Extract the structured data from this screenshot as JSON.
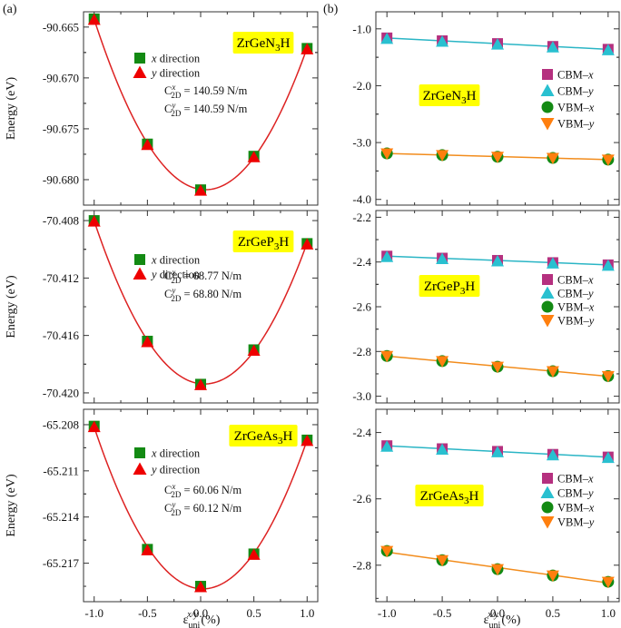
{
  "panel_labels": [
    "(a)",
    "(b)"
  ],
  "left_ylabel": "Energy (eV)",
  "xlabel": {
    "base": "ε",
    "sup": "x/y",
    "sub": "uni",
    "unit": "(%)"
  },
  "legend_left": [
    {
      "label": "x direction",
      "marker": "square",
      "color": "#138a13"
    },
    {
      "label": "y direction",
      "marker": "triangle-up",
      "color": "#ee0000"
    }
  ],
  "legend_right": [
    {
      "label": "CBM–x",
      "marker": "square",
      "color": "#b5307f"
    },
    {
      "label": "CBM–y",
      "marker": "triangle-up",
      "color": "#29c0d0"
    },
    {
      "label": "VBM–x",
      "marker": "circle",
      "color": "#138a13"
    },
    {
      "label": "VBM–y",
      "marker": "triangle-down",
      "color": "#ff7f0e"
    }
  ],
  "colors": {
    "fit_energy": "#dd2222",
    "cbm_line": "#2ab5c5",
    "vbm_line": "#f28c1c",
    "title_box": "#ffff00"
  },
  "chart_data": [
    {
      "id": "a1",
      "type": "scatter",
      "title": "ZrGeN₃H",
      "x": [
        -1.0,
        -0.5,
        0.0,
        0.5,
        1.0
      ],
      "series": [
        {
          "name": "x direction",
          "values": [
            -90.6642,
            -90.6765,
            -90.681,
            -90.6777,
            -90.6671
          ]
        },
        {
          "name": "y direction",
          "values": [
            -90.6642,
            -90.6765,
            -90.681,
            -90.6777,
            -90.6671
          ]
        }
      ],
      "stiffness": [
        {
          "dir": "x",
          "value": "= 140.59 N/m"
        },
        {
          "dir": "y",
          "value": "= 140.59 N/m"
        }
      ],
      "ylabel": "Energy (eV)",
      "ylim": [
        -90.6825,
        -90.6635
      ],
      "xlim": [
        -1.1,
        1.1
      ],
      "yticks": [
        -90.68,
        -90.675,
        -90.67,
        -90.665
      ],
      "ytick_labels": [
        "-90.680",
        "-90.675",
        "-90.670",
        "-90.665"
      ]
    },
    {
      "id": "a2",
      "type": "scatter",
      "title": "ZrGeP₃H",
      "x": [
        -1.0,
        -0.5,
        0.0,
        0.5,
        1.0
      ],
      "series": [
        {
          "name": "x direction",
          "values": [
            -70.408,
            -70.4164,
            -70.4194,
            -70.417,
            -70.4096
          ]
        },
        {
          "name": "y direction",
          "values": [
            -70.408,
            -70.4164,
            -70.4194,
            -70.417,
            -70.4096
          ]
        }
      ],
      "stiffness": [
        {
          "dir": "x",
          "value": "= 68.77 N/m"
        },
        {
          "dir": "y",
          "value": "= 68.80 N/m"
        }
      ],
      "ylabel": "Energy (eV)",
      "ylim": [
        -70.4207,
        -70.4073
      ],
      "xlim": [
        -1.1,
        1.1
      ],
      "yticks": [
        -70.42,
        -70.416,
        -70.412,
        -70.408
      ],
      "ytick_labels": [
        "-70.420",
        "-70.416",
        "-70.412",
        "-70.408"
      ]
    },
    {
      "id": "a3",
      "type": "scatter",
      "title": "ZrGeAs₃H",
      "x": [
        -1.0,
        -0.5,
        0.0,
        0.5,
        1.0
      ],
      "series": [
        {
          "name": "x direction",
          "values": [
            -65.2081,
            -65.2161,
            -65.2185,
            -65.2164,
            -65.209
          ]
        },
        {
          "name": "y direction",
          "values": [
            -65.2081,
            -65.2161,
            -65.2185,
            -65.2164,
            -65.209
          ]
        }
      ],
      "stiffness": [
        {
          "dir": "x",
          "value": "= 60.06 N/m"
        },
        {
          "dir": "y",
          "value": "= 60.12 N/m"
        }
      ],
      "ylabel": "Energy (eV)",
      "ylim": [
        -65.2195,
        -65.207
      ],
      "xlim": [
        -1.1,
        1.1
      ],
      "yticks": [
        -65.217,
        -65.214,
        -65.211,
        -65.208
      ],
      "ytick_labels": [
        "-65.217",
        "-65.214",
        "-65.211",
        "-65.208"
      ]
    },
    {
      "id": "b1",
      "type": "scatter",
      "title": "ZrGeN₃H",
      "x": [
        -1.0,
        -0.5,
        0.0,
        0.5,
        1.0
      ],
      "series": [
        {
          "name": "CBM–x",
          "values": [
            -1.16,
            -1.21,
            -1.26,
            -1.31,
            -1.36
          ]
        },
        {
          "name": "CBM–y",
          "values": [
            -1.16,
            -1.21,
            -1.26,
            -1.31,
            -1.36
          ]
        },
        {
          "name": "VBM–x",
          "values": [
            -3.19,
            -3.22,
            -3.25,
            -3.27,
            -3.3
          ]
        },
        {
          "name": "VBM–y",
          "values": [
            -3.19,
            -3.22,
            -3.25,
            -3.27,
            -3.3
          ]
        }
      ],
      "ylim": [
        -4.1,
        -0.7
      ],
      "xlim": [
        -1.1,
        1.1
      ],
      "yticks": [
        -4.0,
        -3.0,
        -2.0,
        -1.0
      ],
      "ytick_labels": [
        "-4.0",
        "-3.0",
        "-2.0",
        "-1.0"
      ]
    },
    {
      "id": "b2",
      "type": "scatter",
      "title": "ZrGeP₃H",
      "x": [
        -1.0,
        -0.5,
        0.0,
        0.5,
        1.0
      ],
      "series": [
        {
          "name": "CBM–x",
          "values": [
            -2.374,
            -2.383,
            -2.393,
            -2.403,
            -2.413
          ]
        },
        {
          "name": "CBM–y",
          "values": [
            -2.374,
            -2.383,
            -2.393,
            -2.403,
            -2.413
          ]
        },
        {
          "name": "VBM–x",
          "values": [
            -2.82,
            -2.843,
            -2.868,
            -2.888,
            -2.91
          ]
        },
        {
          "name": "VBM–y",
          "values": [
            -2.82,
            -2.843,
            -2.868,
            -2.888,
            -2.91
          ]
        }
      ],
      "ylim": [
        -3.03,
        -2.17
      ],
      "xlim": [
        -1.1,
        1.1
      ],
      "yticks": [
        -3.0,
        -2.8,
        -2.6,
        -2.4,
        -2.2
      ],
      "ytick_labels": [
        "-3.0",
        "-2.8",
        "-2.6",
        "-2.4",
        "-2.2"
      ]
    },
    {
      "id": "b3",
      "type": "scatter",
      "title": "ZrGeAs₃H",
      "x": [
        -1.0,
        -0.5,
        0.0,
        0.5,
        1.0
      ],
      "series": [
        {
          "name": "CBM–x",
          "values": [
            -2.44,
            -2.449,
            -2.457,
            -2.466,
            -2.474
          ]
        },
        {
          "name": "CBM–y",
          "values": [
            -2.44,
            -2.449,
            -2.457,
            -2.466,
            -2.474
          ]
        },
        {
          "name": "VBM–x",
          "values": [
            -2.757,
            -2.785,
            -2.812,
            -2.831,
            -2.85
          ]
        },
        {
          "name": "VBM–y",
          "values": [
            -2.757,
            -2.785,
            -2.812,
            -2.831,
            -2.85
          ]
        }
      ],
      "ylim": [
        -2.91,
        -2.33
      ],
      "xlim": [
        -1.1,
        1.1
      ],
      "yticks": [
        -2.8,
        -2.6,
        -2.4
      ],
      "ytick_labels": [
        "-2.8",
        "-2.6",
        "-2.4"
      ]
    }
  ],
  "xticks": [
    -1.0,
    -0.5,
    0.0,
    0.5,
    1.0
  ],
  "xtick_labels": [
    "-1.0",
    "-0.5",
    "0.0",
    "0.5",
    "1.0"
  ]
}
